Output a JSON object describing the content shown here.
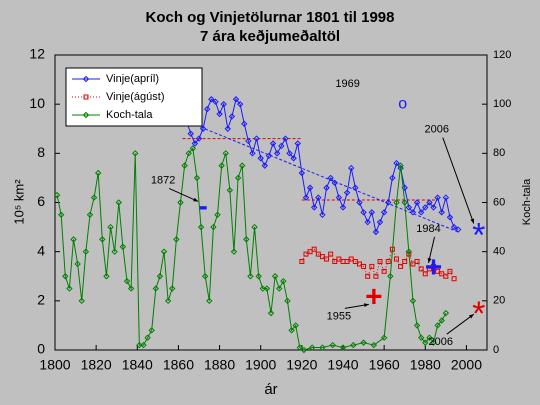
{
  "chart_data": {
    "type": "line",
    "title": [
      "Koch og Vinjetölurnar 1801 til 1998",
      "7 ára keðjumeðaltöl"
    ],
    "xlabel": "ár",
    "ylabel": "10⁵ km²",
    "y2label": "Koch-tala",
    "xlim": [
      1800,
      2010
    ],
    "xticks": [
      1800,
      1820,
      1840,
      1860,
      1880,
      1900,
      1920,
      1940,
      1960,
      1980,
      2000
    ],
    "ylim": [
      0,
      12
    ],
    "yticks": [
      0,
      2,
      4,
      6,
      8,
      10,
      12
    ],
    "y2lim": [
      0,
      120
    ],
    "y2ticks": [
      0,
      20,
      40,
      60,
      80,
      100,
      120
    ],
    "legend": "top-left",
    "series": [
      {
        "name": "Vinje(apríl)",
        "color": "#1a1aff",
        "marker": "diamond",
        "dash": "solid",
        "x": [
          1864,
          1866,
          1868,
          1870,
          1872,
          1874,
          1876,
          1878,
          1880,
          1882,
          1884,
          1886,
          1888,
          1890,
          1892,
          1894,
          1896,
          1898,
          1900,
          1902,
          1904,
          1906,
          1908,
          1910,
          1912,
          1914,
          1916,
          1918,
          1920,
          1922,
          1924,
          1926,
          1928,
          1930,
          1932,
          1934,
          1936,
          1938,
          1940,
          1942,
          1944,
          1946,
          1948,
          1950,
          1952,
          1954,
          1956,
          1958,
          1960,
          1962,
          1964,
          1966,
          1968,
          1970,
          1972,
          1974,
          1976,
          1978,
          1980,
          1982,
          1984,
          1986,
          1988,
          1990,
          1992,
          1994,
          1996
        ],
        "values": [
          9.3,
          8.8,
          8.4,
          8.6,
          9.0,
          9.8,
          10.2,
          10.1,
          9.6,
          10.0,
          9.0,
          9.5,
          10.2,
          10.0,
          9.2,
          8.5,
          8.0,
          8.6,
          7.8,
          7.5,
          7.9,
          8.4,
          8.0,
          8.3,
          8.6,
          8.0,
          7.8,
          8.4,
          7.2,
          6.2,
          6.6,
          5.8,
          6.2,
          5.5,
          6.6,
          7.0,
          6.8,
          6.2,
          5.8,
          6.4,
          7.4,
          6.6,
          6.0,
          5.6,
          5.2,
          5.6,
          4.8,
          5.2,
          5.6,
          6.0,
          7.0,
          7.6,
          7.4,
          6.6,
          5.8,
          5.6,
          6.0,
          5.6,
          5.8,
          6.0,
          5.8,
          6.2,
          5.6,
          6.2,
          5.4,
          5.0,
          4.9
        ]
      },
      {
        "name": "Vinje(ágúst)",
        "color": "#e00000",
        "marker": "square",
        "dash": "dotted",
        "x": [
          1920,
          1922,
          1924,
          1926,
          1928,
          1930,
          1932,
          1934,
          1936,
          1938,
          1940,
          1942,
          1944,
          1946,
          1948,
          1950,
          1952,
          1954,
          1956,
          1958,
          1960,
          1962,
          1964,
          1966,
          1968,
          1970,
          1972,
          1974,
          1976,
          1978,
          1980,
          1982,
          1984,
          1986,
          1988,
          1990,
          1992,
          1994
        ],
        "values": [
          3.6,
          3.9,
          4.0,
          4.1,
          3.9,
          3.8,
          3.7,
          3.9,
          3.6,
          3.7,
          3.6,
          3.6,
          3.7,
          3.6,
          3.5,
          3.4,
          3.0,
          3.4,
          3.0,
          3.6,
          3.2,
          3.6,
          4.1,
          3.7,
          3.4,
          3.6,
          3.9,
          3.5,
          3.6,
          3.3,
          3.1,
          3.3,
          3.4,
          3.2,
          3.1,
          3.0,
          3.2,
          2.9
        ]
      },
      {
        "name": "Koch-tala",
        "color": "#008000",
        "marker": "diamond",
        "dash": "solid",
        "axis": "y2",
        "x": [
          1801,
          1803,
          1805,
          1807,
          1809,
          1811,
          1813,
          1815,
          1817,
          1819,
          1821,
          1823,
          1825,
          1827,
          1829,
          1831,
          1833,
          1835,
          1837,
          1839,
          1841,
          1843,
          1845,
          1847,
          1849,
          1851,
          1853,
          1855,
          1857,
          1859,
          1861,
          1863,
          1865,
          1867,
          1869,
          1871,
          1873,
          1875,
          1877,
          1879,
          1881,
          1883,
          1885,
          1887,
          1889,
          1891,
          1893,
          1895,
          1897,
          1899,
          1901,
          1903,
          1905,
          1907,
          1909,
          1911,
          1913,
          1915,
          1917,
          1919,
          1921,
          1925,
          1930,
          1935,
          1940,
          1945,
          1950,
          1955,
          1960,
          1963,
          1966,
          1968,
          1970,
          1972,
          1974,
          1976,
          1978,
          1980,
          1982,
          1984,
          1986,
          1988,
          1990
        ],
        "values": [
          63,
          55,
          30,
          25,
          45,
          35,
          20,
          40,
          55,
          62,
          72,
          45,
          30,
          50,
          40,
          60,
          42,
          28,
          25,
          80,
          2,
          2,
          5,
          8,
          25,
          30,
          40,
          20,
          25,
          45,
          60,
          75,
          80,
          82,
          70,
          50,
          30,
          20,
          50,
          55,
          75,
          80,
          65,
          40,
          70,
          75,
          45,
          30,
          50,
          30,
          25,
          25,
          15,
          30,
          25,
          28,
          20,
          8,
          10,
          1,
          0,
          1,
          1,
          2,
          1,
          2,
          3,
          2,
          5,
          30,
          60,
          75,
          60,
          40,
          20,
          10,
          5,
          3,
          5,
          3,
          10,
          12,
          15
        ]
      }
    ],
    "reference_lines": [
      {
        "x": [
          1862,
          1920
        ],
        "y": 8.6,
        "color": "#e00000"
      },
      {
        "x": [
          1920,
          1985
        ],
        "y": 6.1,
        "color": "#e00000"
      },
      {
        "x": [
          1864,
          1996
        ],
        "y": [
          9.3,
          4.8
        ],
        "color": "#1a1aff"
      }
    ],
    "annotations": [
      {
        "label": "1969",
        "x": 1969,
        "y": 10.0,
        "symbol": "o",
        "color": "#1a1aff"
      },
      {
        "label": "1872",
        "x": 1872,
        "y": 5.8,
        "symbol": "-",
        "color": "#1a1aff"
      },
      {
        "label": "1955",
        "x": 1955,
        "y": 2.1,
        "symbol": "+",
        "color": "#e00000"
      },
      {
        "label": "1984",
        "x": 1984,
        "y": 3.3,
        "symbol": "+",
        "color": "#1a1aff"
      },
      {
        "label": "2006",
        "x": 2006,
        "y": 4.9,
        "symbol": "*",
        "color": "#1a1aff"
      },
      {
        "label": "2006",
        "x": 2006,
        "y": 1.7,
        "symbol": "*",
        "color": "#e00000"
      }
    ]
  }
}
